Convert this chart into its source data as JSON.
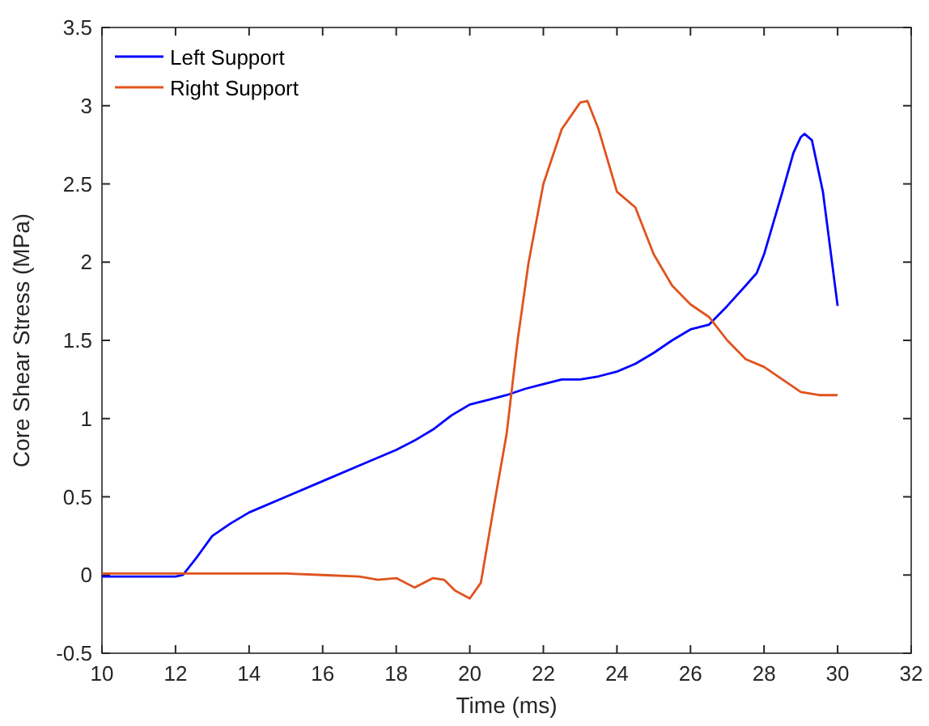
{
  "chart_data": {
    "type": "line",
    "xlabel": "Time (ms)",
    "ylabel": "Core Shear Stress (MPa)",
    "xlim": [
      10,
      32
    ],
    "xticks": [
      10,
      12,
      14,
      16,
      18,
      20,
      22,
      24,
      26,
      28,
      30,
      32
    ],
    "ylim": [
      -0.5,
      3.5
    ],
    "yticks": [
      -0.5,
      0,
      0.5,
      1,
      1.5,
      2,
      2.5,
      3,
      3.5
    ],
    "legend": "top left",
    "grid": false,
    "marker": "none",
    "line_style": "solid",
    "series": [
      {
        "name": "Left Support",
        "color": "#0000ff",
        "x": [
          10,
          12,
          12.2,
          12.6,
          13,
          13.5,
          14,
          15,
          16,
          17,
          18,
          18.5,
          19,
          19.5,
          20,
          20.5,
          21,
          21.5,
          22,
          22.5,
          23,
          23.5,
          24,
          24.5,
          25,
          25.5,
          26,
          26.5,
          27,
          27.5,
          27.8,
          28,
          28.5,
          28.8,
          29,
          29.1,
          29.3,
          29.6,
          30
        ],
        "values": [
          -0.01,
          -0.01,
          0,
          0.12,
          0.25,
          0.33,
          0.4,
          0.5,
          0.6,
          0.7,
          0.8,
          0.86,
          0.93,
          1.02,
          1.09,
          1.12,
          1.15,
          1.19,
          1.22,
          1.25,
          1.25,
          1.27,
          1.3,
          1.35,
          1.42,
          1.5,
          1.57,
          1.6,
          1.72,
          1.85,
          1.93,
          2.05,
          2.45,
          2.7,
          2.8,
          2.82,
          2.78,
          2.45,
          1.72
        ]
      },
      {
        "name": "Right Support",
        "color": "#e0531e",
        "x": [
          10,
          15,
          16,
          17,
          17.5,
          18,
          18.5,
          19,
          19.3,
          19.6,
          20,
          20.3,
          20.7,
          21,
          21.3,
          21.6,
          22,
          22.5,
          23,
          23.2,
          23.5,
          24,
          24.5,
          25,
          25.5,
          26,
          26.5,
          27,
          27.5,
          28,
          28.5,
          29,
          29.5,
          30
        ],
        "values": [
          0.01,
          0.01,
          0,
          -0.01,
          -0.03,
          -0.02,
          -0.08,
          -0.02,
          -0.03,
          -0.1,
          -0.15,
          -0.05,
          0.5,
          0.9,
          1.5,
          2.0,
          2.5,
          2.85,
          3.02,
          3.03,
          2.85,
          2.45,
          2.35,
          2.05,
          1.85,
          1.73,
          1.65,
          1.5,
          1.38,
          1.33,
          1.25,
          1.17,
          1.15,
          1.15
        ]
      }
    ]
  }
}
